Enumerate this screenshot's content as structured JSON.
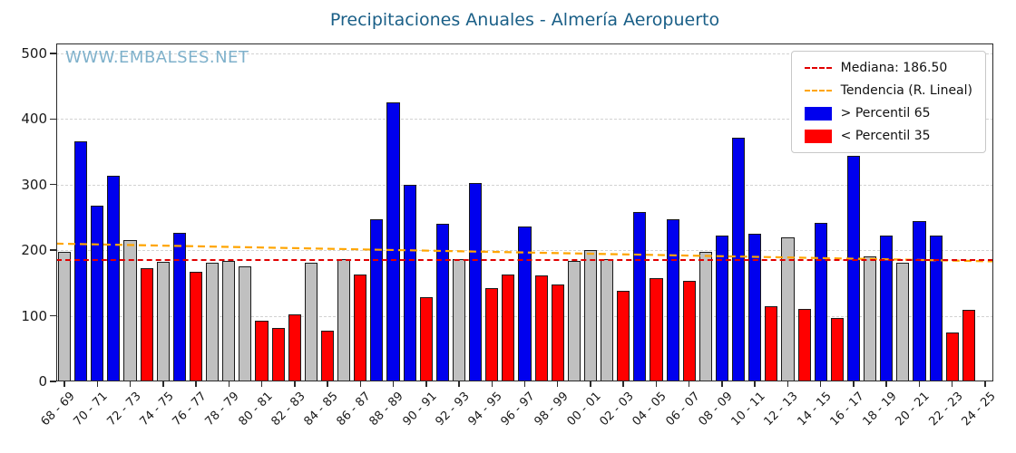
{
  "title": "Precipitaciones Anuales - Almería Aeropuerto",
  "watermark": "WWW.EMBALSES.NET",
  "legend": {
    "median_label": "Mediana: 186.50",
    "trend_label": "Tendencia (R. Lineal)",
    "above_label": "> Percentil 65",
    "below_label": "< Percentil 35"
  },
  "colors": {
    "above": "#0000ee",
    "below": "#ff0000",
    "mid": "#c0c0c0",
    "bar_edge": "#1a1a1a",
    "median_line": "#e00000",
    "trend_line": "#ffa500",
    "title": "#1a5f87",
    "watermark": "#7fb1cb"
  },
  "chart_data": {
    "type": "bar",
    "title": "Precipitaciones Anuales - Almería Aeropuerto",
    "xlabel": "",
    "ylabel": "",
    "ylim": [
      0,
      515
    ],
    "yticks": [
      0,
      100,
      200,
      300,
      400,
      500
    ],
    "grid": true,
    "legend_position": "upper right",
    "median": 186.5,
    "trend_line": {
      "start_value": 210,
      "end_value": 183
    },
    "x_tick_labels": [
      "68 - 69",
      "70 - 71",
      "72 - 73",
      "74 - 75",
      "76 - 77",
      "78 - 79",
      "80 - 81",
      "82 - 83",
      "84 - 85",
      "86 - 87",
      "88 - 89",
      "90 - 91",
      "92 - 93",
      "94 - 95",
      "96 - 97",
      "98 - 99",
      "00 - 01",
      "02 - 03",
      "04 - 05",
      "06 - 07",
      "08 - 09",
      "10 - 11",
      "12 - 13",
      "14 - 15",
      "16 - 17",
      "18 - 19",
      "20 - 21",
      "22 - 23",
      "24 - 25"
    ],
    "bars": [
      {
        "season": "68 - 69",
        "value": 197,
        "category": "mid"
      },
      {
        "season": "69 - 70",
        "value": 366,
        "category": "above"
      },
      {
        "season": "70 - 71",
        "value": 268,
        "category": "above"
      },
      {
        "season": "71 - 72",
        "value": 313,
        "category": "above"
      },
      {
        "season": "72 - 73",
        "value": 215,
        "category": "mid"
      },
      {
        "season": "73 - 74",
        "value": 172,
        "category": "below"
      },
      {
        "season": "74 - 75",
        "value": 182,
        "category": "mid"
      },
      {
        "season": "75 - 76",
        "value": 227,
        "category": "above"
      },
      {
        "season": "76 - 77",
        "value": 167,
        "category": "below"
      },
      {
        "season": "77 - 78",
        "value": 181,
        "category": "mid"
      },
      {
        "season": "78 - 79",
        "value": 184,
        "category": "mid"
      },
      {
        "season": "79 - 80",
        "value": 175,
        "category": "mid"
      },
      {
        "season": "80 - 81",
        "value": 93,
        "category": "below"
      },
      {
        "season": "81 - 82",
        "value": 81,
        "category": "below"
      },
      {
        "season": "82 - 83",
        "value": 102,
        "category": "below"
      },
      {
        "season": "83 - 84",
        "value": 181,
        "category": "mid"
      },
      {
        "season": "84 - 85",
        "value": 77,
        "category": "below"
      },
      {
        "season": "85 - 86",
        "value": 187,
        "category": "mid"
      },
      {
        "season": "86 - 87",
        "value": 163,
        "category": "below"
      },
      {
        "season": "87 - 88",
        "value": 247,
        "category": "above"
      },
      {
        "season": "88 - 89",
        "value": 425,
        "category": "above"
      },
      {
        "season": "89 - 90",
        "value": 300,
        "category": "above"
      },
      {
        "season": "90 - 91",
        "value": 128,
        "category": "below"
      },
      {
        "season": "91 - 92",
        "value": 240,
        "category": "above"
      },
      {
        "season": "92 - 93",
        "value": 187,
        "category": "mid"
      },
      {
        "season": "93 - 94",
        "value": 302,
        "category": "above"
      },
      {
        "season": "94 - 95",
        "value": 142,
        "category": "below"
      },
      {
        "season": "95 - 96",
        "value": 163,
        "category": "below"
      },
      {
        "season": "96 - 97",
        "value": 236,
        "category": "above"
      },
      {
        "season": "97 - 98",
        "value": 161,
        "category": "below"
      },
      {
        "season": "98 - 99",
        "value": 148,
        "category": "below"
      },
      {
        "season": "99 - 00",
        "value": 184,
        "category": "mid"
      },
      {
        "season": "00 - 01",
        "value": 200,
        "category": "mid"
      },
      {
        "season": "01 - 02",
        "value": 186,
        "category": "mid"
      },
      {
        "season": "02 - 03",
        "value": 138,
        "category": "below"
      },
      {
        "season": "03 - 04",
        "value": 258,
        "category": "above"
      },
      {
        "season": "04 - 05",
        "value": 158,
        "category": "below"
      },
      {
        "season": "05 - 06",
        "value": 247,
        "category": "above"
      },
      {
        "season": "06 - 07",
        "value": 153,
        "category": "below"
      },
      {
        "season": "07 - 08",
        "value": 198,
        "category": "mid"
      },
      {
        "season": "08 - 09",
        "value": 223,
        "category": "above"
      },
      {
        "season": "09 - 10",
        "value": 371,
        "category": "above"
      },
      {
        "season": "10 - 11",
        "value": 225,
        "category": "above"
      },
      {
        "season": "11 - 12",
        "value": 114,
        "category": "below"
      },
      {
        "season": "12 - 13",
        "value": 220,
        "category": "mid"
      },
      {
        "season": "13 - 14",
        "value": 110,
        "category": "below"
      },
      {
        "season": "14 - 15",
        "value": 242,
        "category": "above"
      },
      {
        "season": "15 - 16",
        "value": 97,
        "category": "below"
      },
      {
        "season": "16 - 17",
        "value": 344,
        "category": "above"
      },
      {
        "season": "17 - 18",
        "value": 190,
        "category": "mid"
      },
      {
        "season": "18 - 19",
        "value": 222,
        "category": "above"
      },
      {
        "season": "19 - 20",
        "value": 181,
        "category": "mid"
      },
      {
        "season": "20 - 21",
        "value": 244,
        "category": "above"
      },
      {
        "season": "21 - 22",
        "value": 222,
        "category": "above"
      },
      {
        "season": "22 - 23",
        "value": 74,
        "category": "below"
      },
      {
        "season": "23 - 24",
        "value": 109,
        "category": "below"
      },
      {
        "season": "24 - 25",
        "value": null,
        "category": null
      }
    ]
  }
}
